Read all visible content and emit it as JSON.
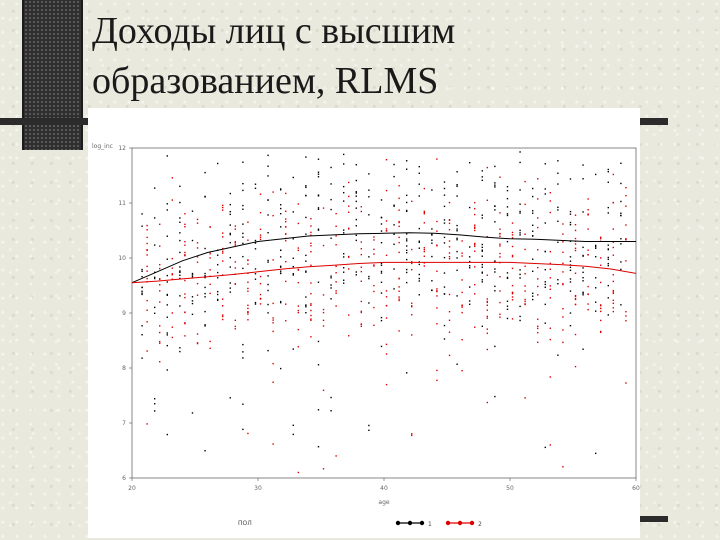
{
  "slide": {
    "title_line1": "Доходы лиц с высшим",
    "title_line2": "образованием, RLMS",
    "colors": {
      "background": "#e9e9dd",
      "accent_dark": "#2b2b2b",
      "series_1": "#000000",
      "series_2": "#dd0000"
    }
  },
  "chart_data": {
    "type": "scatter",
    "ylabel": "log_inc",
    "xlabel": "age",
    "x_ticks": [
      "20",
      "30",
      "40",
      "50",
      "60"
    ],
    "y_ticks": [
      "6",
      "7",
      "8",
      "9",
      "10",
      "11",
      "12"
    ],
    "xlim": [
      20,
      60
    ],
    "ylim": [
      6,
      12
    ],
    "legend_prefix": "ПОЛ",
    "series": [
      {
        "name": "1",
        "color": "#000000",
        "trend": [
          [
            20,
            9.55
          ],
          [
            22,
            9.75
          ],
          [
            24,
            9.95
          ],
          [
            26,
            10.1
          ],
          [
            28,
            10.2
          ],
          [
            30,
            10.3
          ],
          [
            32,
            10.35
          ],
          [
            34,
            10.4
          ],
          [
            36,
            10.42
          ],
          [
            38,
            10.44
          ],
          [
            40,
            10.45
          ],
          [
            42,
            10.46
          ],
          [
            44,
            10.45
          ],
          [
            46,
            10.42
          ],
          [
            48,
            10.38
          ],
          [
            50,
            10.35
          ],
          [
            52,
            10.34
          ],
          [
            54,
            10.32
          ],
          [
            56,
            10.3
          ],
          [
            58,
            10.3
          ],
          [
            60,
            10.3
          ]
        ]
      },
      {
        "name": "2",
        "color": "#dd0000",
        "trend": [
          [
            20,
            9.55
          ],
          [
            22,
            9.58
          ],
          [
            24,
            9.62
          ],
          [
            26,
            9.66
          ],
          [
            28,
            9.7
          ],
          [
            30,
            9.75
          ],
          [
            32,
            9.8
          ],
          [
            34,
            9.84
          ],
          [
            36,
            9.87
          ],
          [
            38,
            9.9
          ],
          [
            40,
            9.92
          ],
          [
            42,
            9.92
          ],
          [
            44,
            9.92
          ],
          [
            46,
            9.92
          ],
          [
            48,
            9.92
          ],
          [
            50,
            9.92
          ],
          [
            52,
            9.9
          ],
          [
            54,
            9.88
          ],
          [
            56,
            9.85
          ],
          [
            58,
            9.8
          ],
          [
            60,
            9.72
          ]
        ]
      }
    ]
  }
}
